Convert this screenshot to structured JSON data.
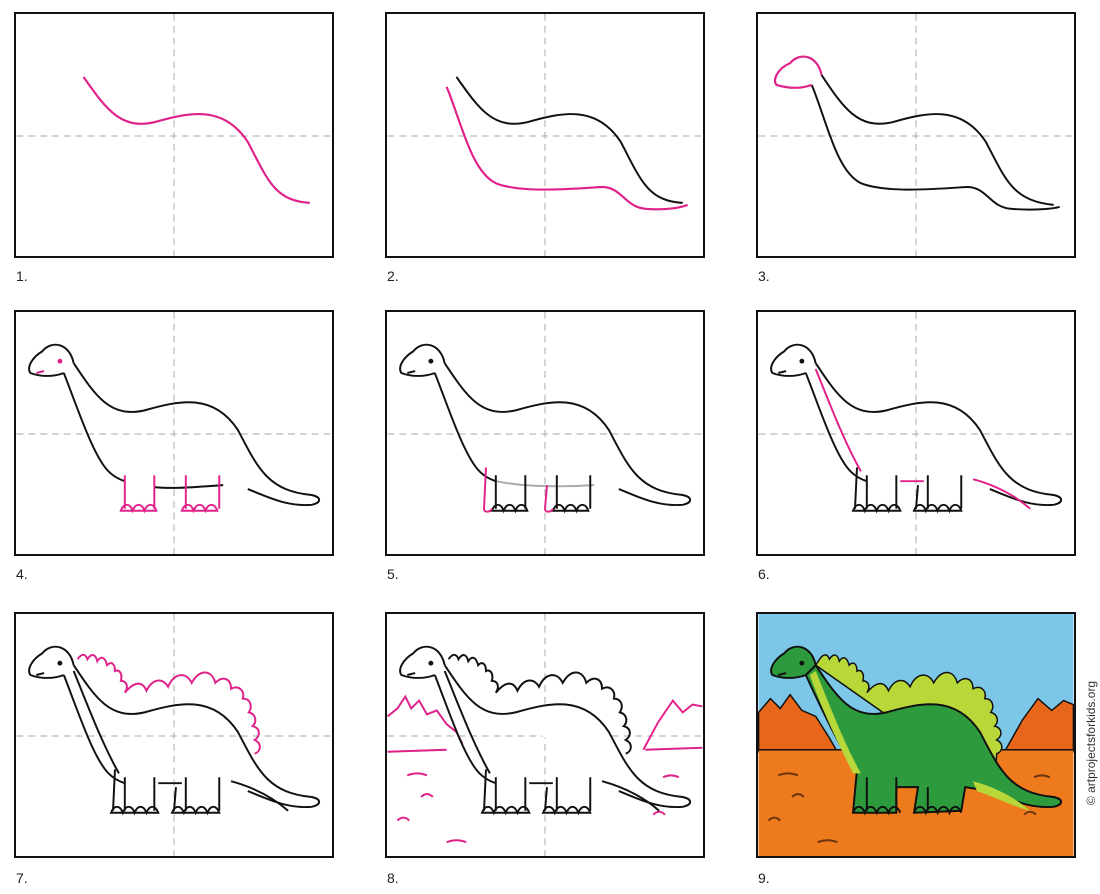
{
  "steps": [
    {
      "label": "1."
    },
    {
      "label": "2."
    },
    {
      "label": "3."
    },
    {
      "label": "4."
    },
    {
      "label": "5."
    },
    {
      "label": "6."
    },
    {
      "label": "7."
    },
    {
      "label": "8."
    },
    {
      "label": "9."
    }
  ],
  "credit": "© artprojectsforkids.org",
  "colors": {
    "new_line": "#e0218a",
    "outline": "#111111",
    "guide": "#aaaaaa",
    "sky": "#7cc7e8",
    "ground": "#ee7a1e",
    "dino": "#2e9a3e",
    "plates": "#b8d83a"
  }
}
